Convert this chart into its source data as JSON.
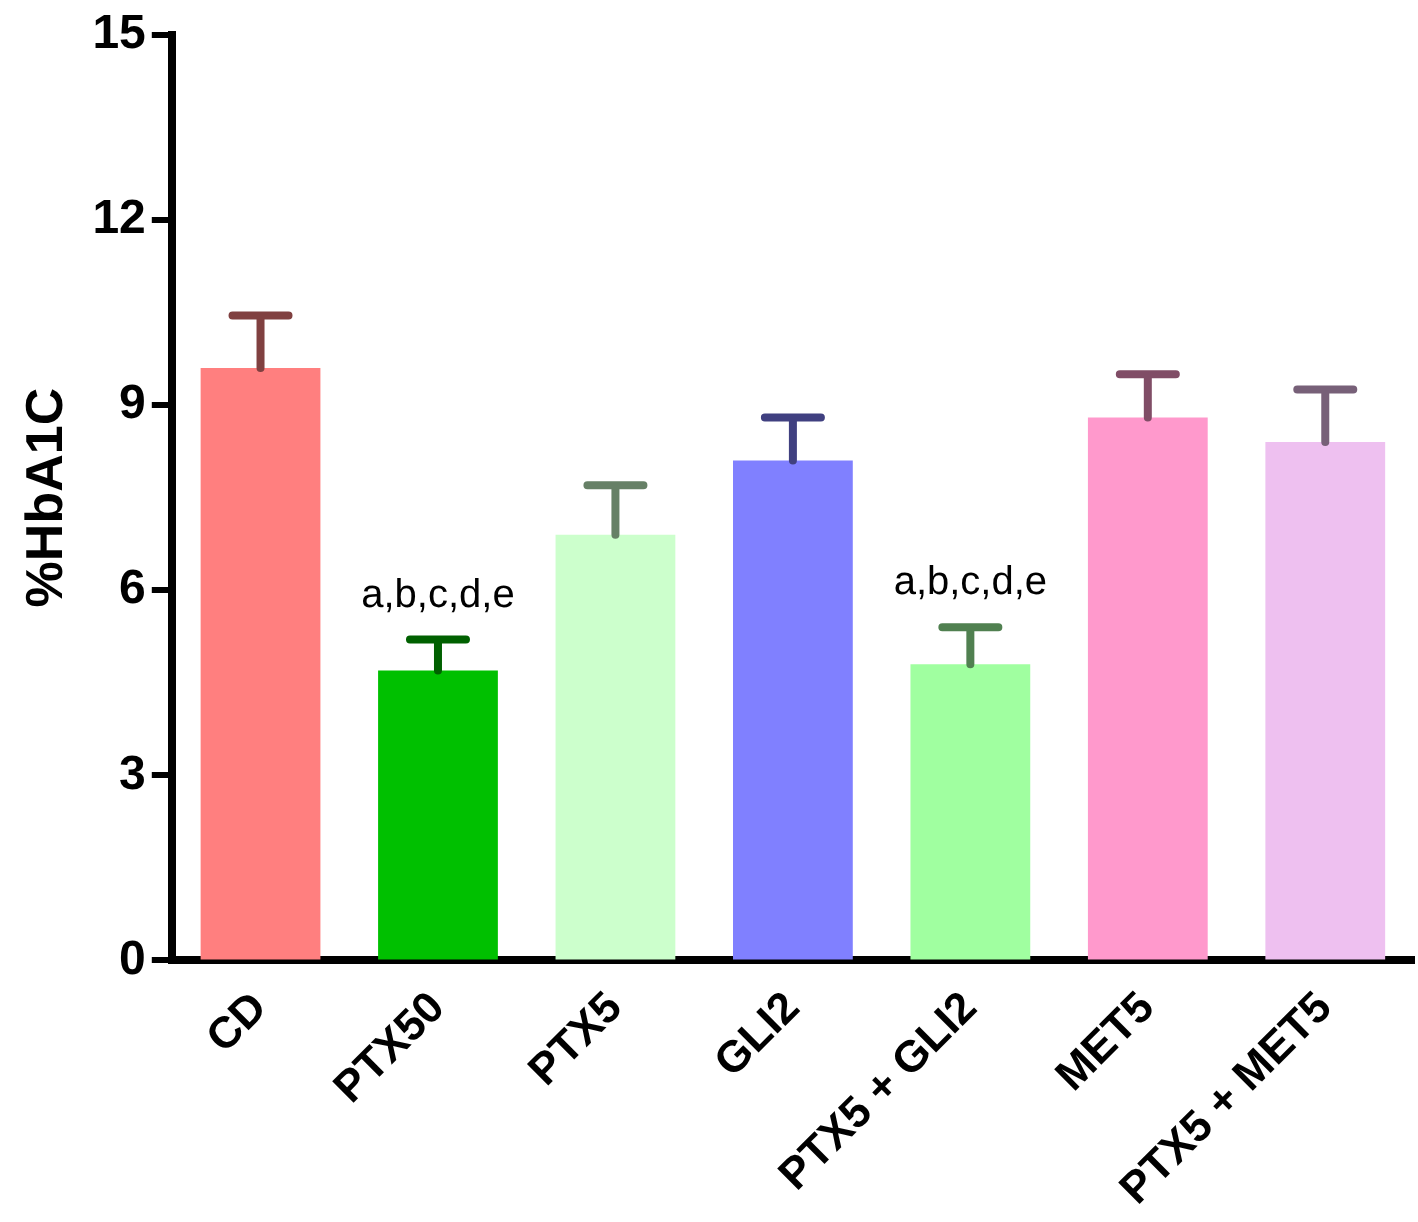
{
  "chart_data": {
    "type": "bar",
    "ylabel": "%HbA1C",
    "categories": [
      "CD",
      "PTX50",
      "PTX5",
      "GLI2",
      "PTX5 + GLI2",
      "MET5",
      "PTX5 + MET5"
    ],
    "values": [
      9.6,
      4.7,
      6.9,
      8.1,
      4.8,
      8.8,
      8.4
    ],
    "errors": [
      0.85,
      0.5,
      0.8,
      0.7,
      0.6,
      0.7,
      0.85
    ],
    "colors": [
      "#ff7f7f",
      "#00c000",
      "#ccffcc",
      "#8080ff",
      "#a0ffa0",
      "#ff99cc",
      "#eec0f0"
    ],
    "ylim": [
      0,
      15
    ],
    "yticks": [
      0,
      3,
      6,
      9,
      12,
      15
    ],
    "grid": false,
    "legend": false,
    "annotations": [
      {
        "text": "a,b,c,d,e",
        "x": "PTX50",
        "y": 5.2
      },
      {
        "text": "a,b,c,d,e",
        "x": "PTX5 + GLI2",
        "y": 5.4
      }
    ]
  }
}
